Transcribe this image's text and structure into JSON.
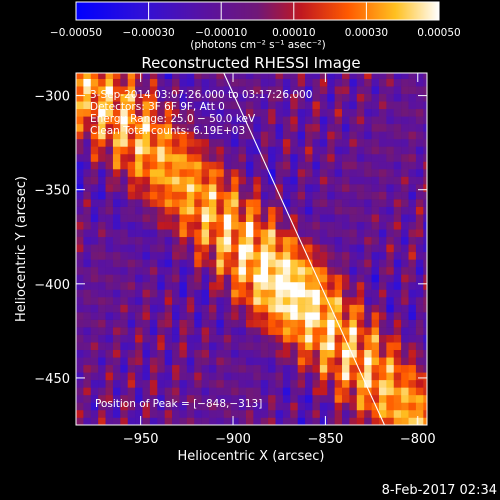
{
  "chart_data": {
    "type": "heatmap",
    "title": "Reconstructed RHESSI Image",
    "xlabel": "Heliocentric X (arcsec)",
    "ylabel": "Heliocentric Y (arcsec)",
    "xlim": [
      -985,
      -795
    ],
    "ylim": [
      -475,
      -288
    ],
    "x_ticks": [
      -950,
      -900,
      -850,
      -800
    ],
    "x_tick_labels": [
      "−950",
      "−900",
      "−850",
      "−800"
    ],
    "y_ticks": [
      -300,
      -350,
      -400,
      -450
    ],
    "y_tick_labels": [
      "−300",
      "−350",
      "−400",
      "−450"
    ],
    "colorbar": {
      "range": [
        -0.0005,
        0.0005
      ],
      "ticks": [
        -0.0005,
        -0.0003,
        -0.0001,
        0.0001,
        0.0003,
        0.0005
      ],
      "tick_labels": [
        "−0.00050",
        "−0.00030",
        "−0.00010",
        "0.00010",
        "0.00030",
        "0.00050"
      ],
      "unit_label": "(photons cm⁻² s⁻¹ asec⁻²)"
    },
    "annotations": {
      "time_range": "3‑Sep‑2014 03:07:26.000 to 03:17:26.000",
      "detectors": "Detectors: 3F 6F 9F, Att 0",
      "energy_range": "Energy Range: 25.0 − 50.0 keV",
      "clean": "Clean    Total counts: 6.19E+03",
      "peak": "Position of Peak = [−848,−313]"
    },
    "limb_line": {
      "x": [
        -905,
        -818
      ],
      "y": [
        -288,
        -475
      ]
    },
    "emission_ridge": {
      "x": [
        -958,
        -818
      ],
      "y": [
        -315,
        -455
      ]
    },
    "footer_date": "8‑Feb‑2017 02:34",
    "colors": {
      "background": "#000000",
      "text": "#ffffff",
      "colormap": "blue-purple-red-yellow-white"
    }
  }
}
